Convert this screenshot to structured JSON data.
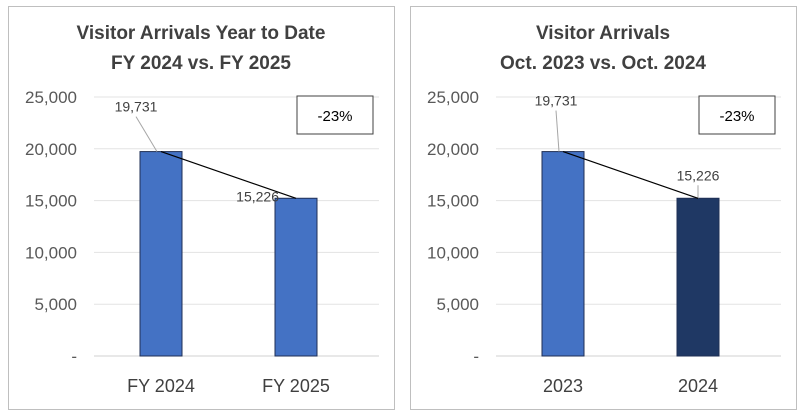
{
  "chart_data": [
    {
      "type": "bar",
      "title": "Visitor Arrivals Year to Date",
      "subtitle": "FY 2024 vs. FY 2025",
      "categories": [
        "FY 2024",
        "FY 2025"
      ],
      "values": [
        19731,
        15226
      ],
      "value_labels": [
        "19,731",
        "15,226"
      ],
      "bar_colors": [
        "#4472c4",
        "#4472c4"
      ],
      "ylim": [
        0,
        25000
      ],
      "yticks": [
        0,
        5000,
        10000,
        15000,
        20000,
        25000
      ],
      "ytick_labels": [
        "-",
        "5,000",
        "10,000",
        "15,000",
        "20,000",
        "25,000"
      ],
      "annotation": "-23%",
      "grid": true
    },
    {
      "type": "bar",
      "title": "Visitor Arrivals",
      "subtitle": "Oct. 2023 vs. Oct. 2024",
      "categories": [
        "2023",
        "2024"
      ],
      "values": [
        19731,
        15226
      ],
      "value_labels": [
        "19,731",
        "15,226"
      ],
      "bar_colors": [
        "#4472c4",
        "#1f3864"
      ],
      "ylim": [
        0,
        25000
      ],
      "yticks": [
        0,
        5000,
        10000,
        15000,
        20000,
        25000
      ],
      "ytick_labels": [
        "-",
        "5,000",
        "10,000",
        "15,000",
        "20,000",
        "25,000"
      ],
      "annotation": "-23%",
      "grid": true
    }
  ]
}
